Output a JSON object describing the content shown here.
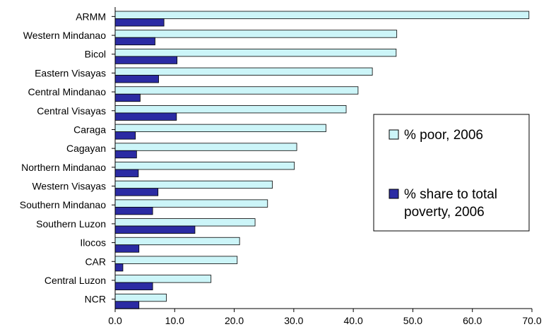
{
  "chart_data": {
    "type": "bar",
    "orientation": "horizontal",
    "title": "",
    "xlabel": "",
    "ylabel": "",
    "xlim": [
      0,
      70
    ],
    "x_ticks": [
      "0.0",
      "10.0",
      "20.0",
      "30.0",
      "40.0",
      "50.0",
      "60.0",
      "70.0"
    ],
    "grid": false,
    "legend_position": "right",
    "categories": [
      "ARMM",
      "Western Mindanao",
      "Bicol",
      "Eastern Visayas",
      "Central Mindanao",
      "Central Visayas",
      "Caraga",
      "Cagayan",
      "Northern Mindanao",
      "Western Visayas",
      "Southern Mindanao",
      "Southern Luzon",
      "Ilocos",
      "CAR",
      "Central Luzon",
      "NCR"
    ],
    "series": [
      {
        "name": "% poor, 2006",
        "color": "#ccf5f8",
        "values": [
          69.5,
          47.3,
          47.2,
          43.2,
          40.8,
          38.8,
          35.4,
          30.5,
          30.1,
          26.4,
          25.6,
          23.5,
          20.9,
          20.5,
          16.1,
          8.6
        ]
      },
      {
        "name": "% share to total poverty, 2006",
        "color": "#2b2ba3",
        "values": [
          8.2,
          6.7,
          10.4,
          7.3,
          4.2,
          10.3,
          3.4,
          3.6,
          3.9,
          7.2,
          6.3,
          13.4,
          4.0,
          1.3,
          6.3,
          4.0
        ]
      }
    ]
  }
}
